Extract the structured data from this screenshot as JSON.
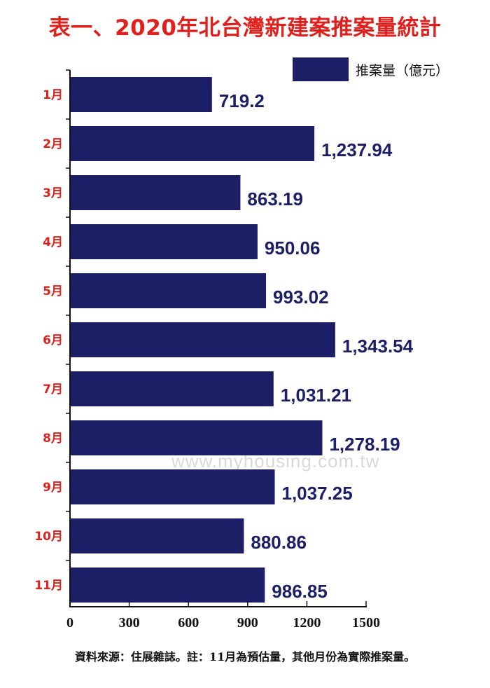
{
  "title": "表一、2020年北台灣新建案推案量統計",
  "source_note": "資料來源：住展雜誌。註：11月為預估量，其他月份為實際推案量。",
  "watermark": "www.myhousing.com.tw",
  "colors": {
    "bar": "#1c1f66",
    "title": "#e0201c",
    "category": "#e0201c",
    "value": "#1c1f66"
  },
  "chart_data": {
    "type": "bar",
    "orientation": "horizontal",
    "categories": [
      "1月",
      "2月",
      "3月",
      "4月",
      "5月",
      "6月",
      "7月",
      "8月",
      "9月",
      "10月",
      "11月"
    ],
    "series": [
      {
        "name": "推案量（億元）",
        "values": [
          719.2,
          1237.94,
          863.19,
          950.06,
          993.02,
          1343.54,
          1031.21,
          1278.19,
          1037.25,
          880.86,
          986.85
        ]
      }
    ],
    "value_labels": [
      "719.2",
      "1,237.94",
      "863.19",
      "950.06",
      "993.02",
      "1,343.54",
      "1,031.21",
      "1,278.19",
      "1,037.25",
      "880.86",
      "986.85"
    ],
    "xlim": [
      0,
      1500
    ],
    "xticks": [
      "0",
      "300",
      "600",
      "900",
      "1200",
      "1500"
    ],
    "legend_position": "top-right",
    "grid": false
  }
}
